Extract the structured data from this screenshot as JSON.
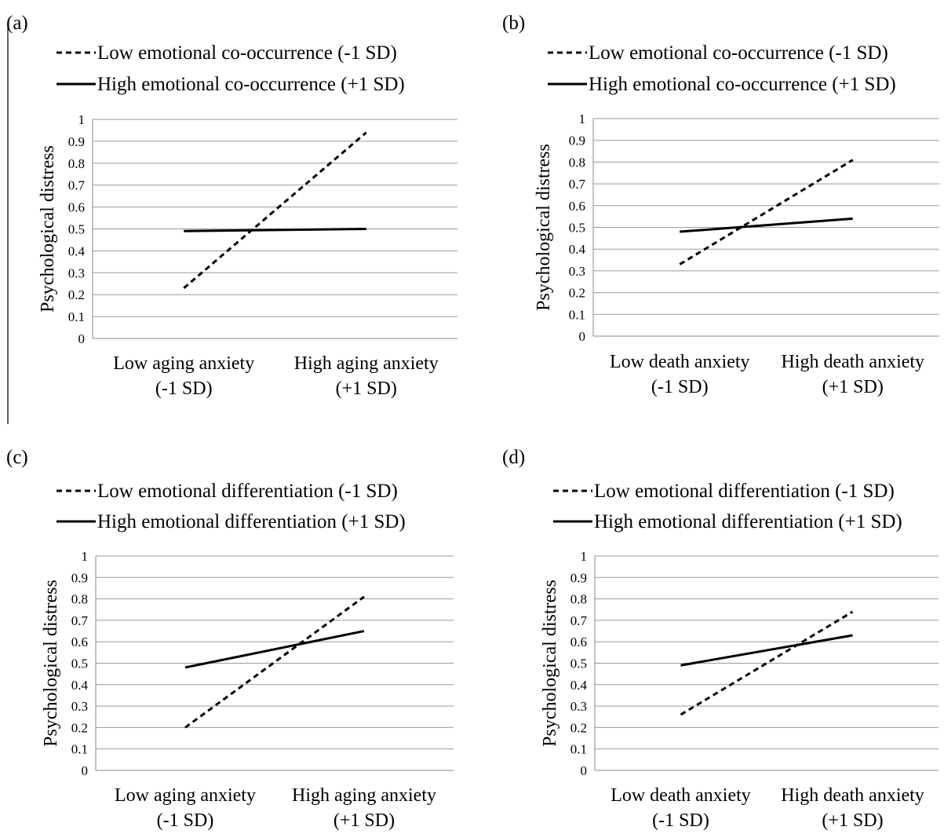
{
  "chart_data": [
    {
      "type": "line",
      "panel_label": "(a)",
      "categories": [
        "Low aging anxiety|(-1 SD)",
        "High aging anxiety|(+1 SD)"
      ],
      "series": [
        {
          "name": "Low emotional co-occurrence (-1 SD)",
          "style": "dashed",
          "values": [
            0.23,
            0.94
          ]
        },
        {
          "name": "High emotional co-occurrence (+1 SD)",
          "style": "solid",
          "values": [
            0.49,
            0.5
          ]
        }
      ],
      "ylabel": "Psychological  distress",
      "ylim": [
        0,
        1
      ],
      "yticks": [
        "0",
        "0.1",
        "0.2",
        "0.3",
        "0.4",
        "0.5",
        "0.6",
        "0.7",
        "0.8",
        "0.9",
        "1"
      ],
      "grid": true,
      "legend_position": "top"
    },
    {
      "type": "line",
      "panel_label": "(b)",
      "categories": [
        "Low death anxiety|(-1 SD)",
        "High death anxiety|(+1 SD)"
      ],
      "series": [
        {
          "name": "Low emotional co-occurrence (-1 SD)",
          "style": "dashed",
          "values": [
            0.33,
            0.81
          ]
        },
        {
          "name": "High emotional co-occurrence (+1 SD)",
          "style": "solid",
          "values": [
            0.48,
            0.54
          ]
        }
      ],
      "ylabel": "Psychological  distress",
      "ylim": [
        0,
        1
      ],
      "yticks": [
        "0",
        "0.1",
        "0.2",
        "0.3",
        "0.4",
        "0.5",
        "0.6",
        "0.7",
        "0.8",
        "0.9",
        "1"
      ],
      "grid": true,
      "legend_position": "top"
    },
    {
      "type": "line",
      "panel_label": "(c)",
      "categories": [
        "Low aging anxiety|(-1 SD)",
        "High aging anxiety|(+1 SD)"
      ],
      "series": [
        {
          "name": "Low emotional differentiation (-1 SD)",
          "style": "dashed",
          "values": [
            0.2,
            0.81
          ]
        },
        {
          "name": "High emotional differentiation (+1 SD)",
          "style": "solid",
          "values": [
            0.48,
            0.65
          ]
        }
      ],
      "ylabel": "Psychological  distress",
      "ylim": [
        0,
        1
      ],
      "yticks": [
        "0",
        "0.1",
        "0.2",
        "0.3",
        "0.4",
        "0.5",
        "0.6",
        "0.7",
        "0.8",
        "0.9",
        "1"
      ],
      "grid": true,
      "legend_position": "top"
    },
    {
      "type": "line",
      "panel_label": "(d)",
      "categories": [
        "Low death anxiety|(-1 SD)",
        "High death anxiety|(+1 SD)"
      ],
      "series": [
        {
          "name": "Low emotional differentiation (-1 SD)",
          "style": "dashed",
          "values": [
            0.26,
            0.74
          ]
        },
        {
          "name": "High emotional differentiation (+1 SD)",
          "style": "solid",
          "values": [
            0.49,
            0.63
          ]
        }
      ],
      "ylabel": "Psychological  distress",
      "ylim": [
        0,
        1
      ],
      "yticks": [
        "0",
        "0.1",
        "0.2",
        "0.3",
        "0.4",
        "0.5",
        "0.6",
        "0.7",
        "0.8",
        "0.9",
        "1"
      ],
      "grid": true,
      "legend_position": "top"
    }
  ]
}
